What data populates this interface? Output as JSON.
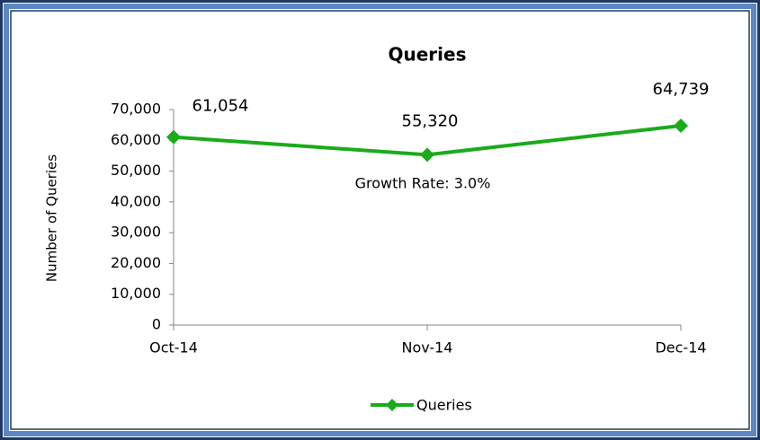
{
  "chart_data": {
    "type": "line",
    "title": "Queries",
    "y_label": "Number of Queries",
    "annotation": "Growth Rate:  3.0%",
    "categories": [
      "Oct-14",
      "Nov-14",
      "Dec-14"
    ],
    "series": [
      {
        "name": "Queries",
        "color": "#1aab1a",
        "values": [
          61054,
          55320,
          64739
        ],
        "value_labels": [
          "61,054",
          "55,320",
          "64,739"
        ]
      }
    ],
    "ylim": [
      0,
      70000
    ],
    "yticks": [
      0,
      {
        "value": 10000,
        "label": "10,000"
      },
      {
        "value": 20000,
        "label": "20,000"
      },
      {
        "value": 30000,
        "label": "30,000"
      },
      {
        "value": 40000,
        "label": "40,000"
      },
      {
        "value": 50000,
        "label": "50,000"
      },
      {
        "value": 60000,
        "label": "60,000"
      },
      {
        "value": 70000,
        "label": "70,000"
      }
    ],
    "legend": "bottom"
  }
}
